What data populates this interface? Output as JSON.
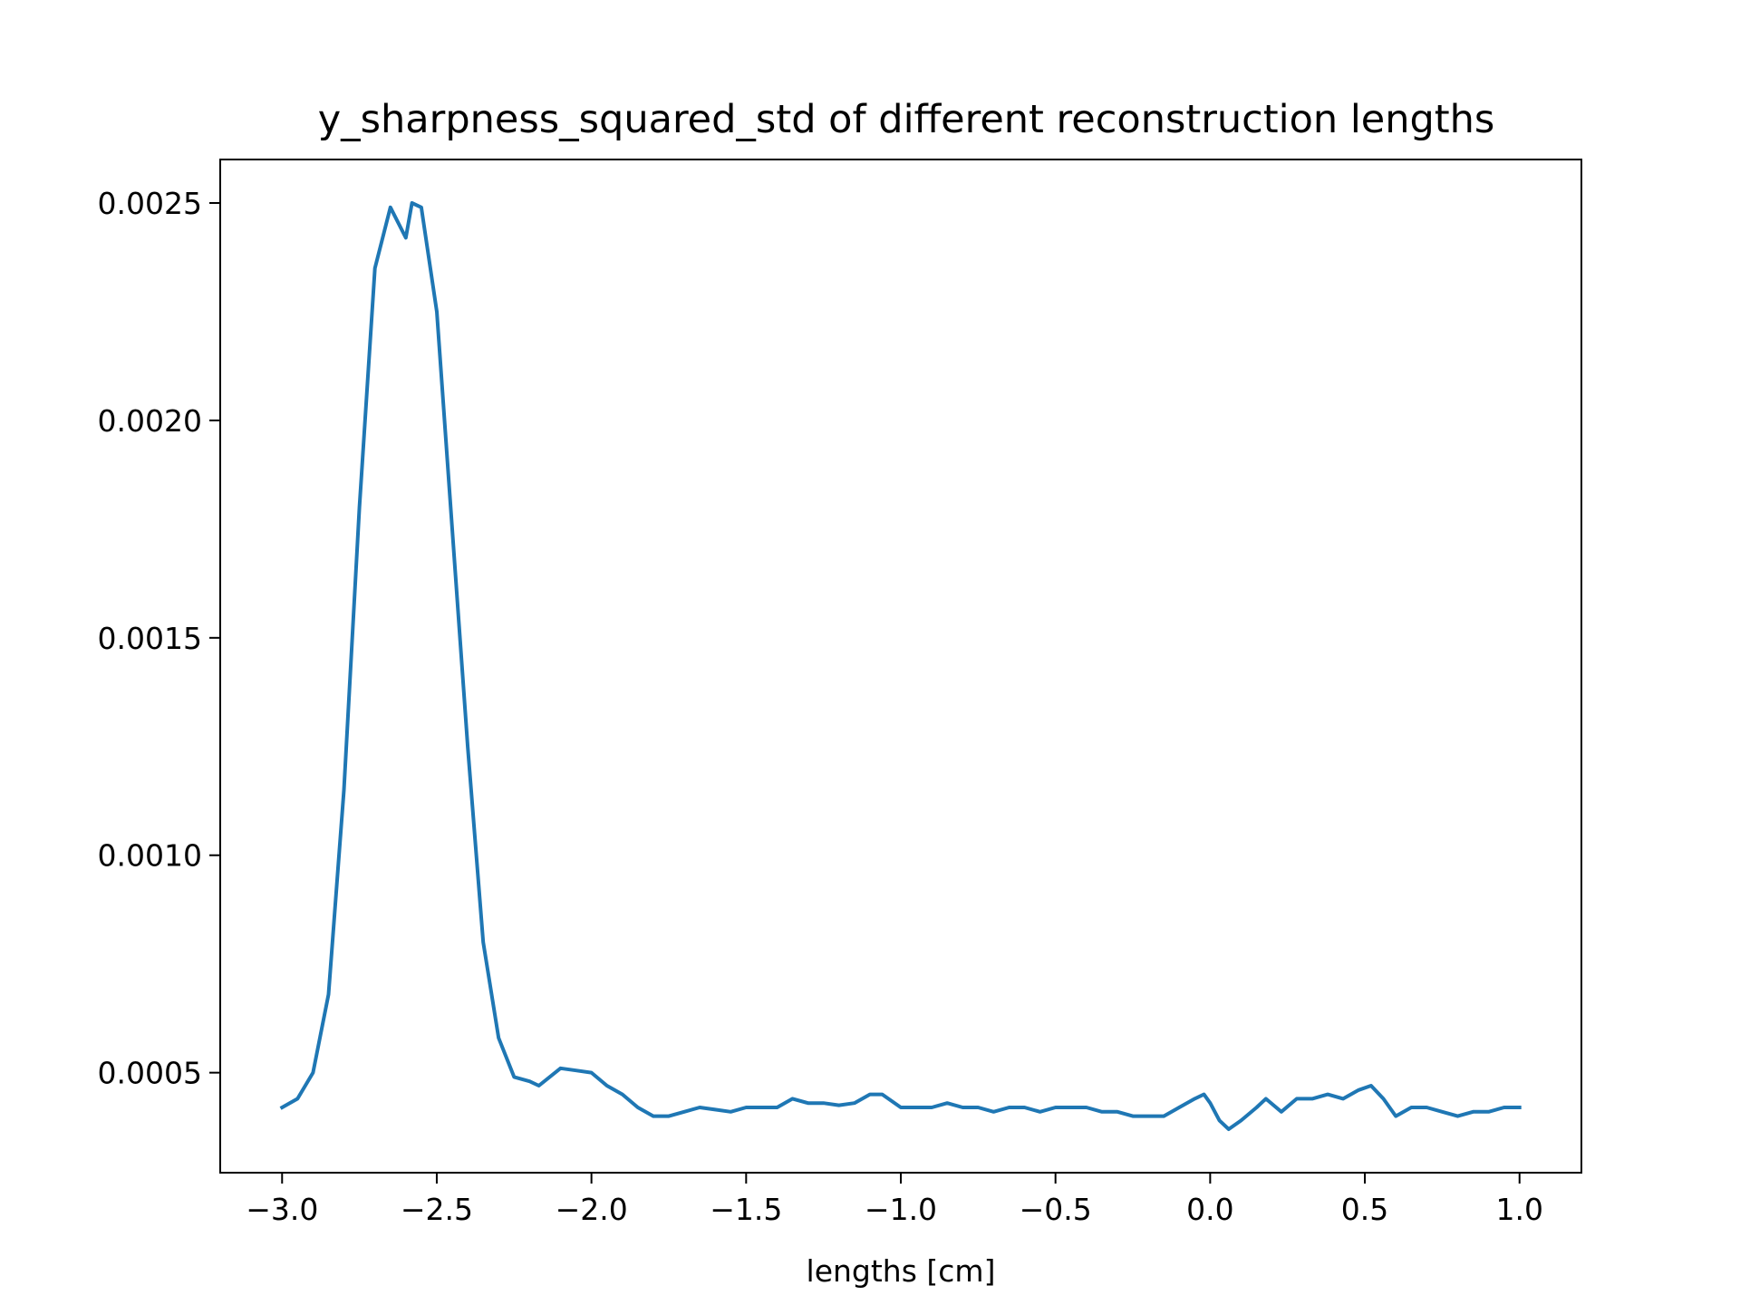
{
  "chart_data": {
    "type": "line",
    "title": "y_sharpness_squared_std of different reconstruction lengths",
    "xlabel": "lengths [cm]",
    "ylabel": "",
    "xlim": [
      -3.2,
      1.2
    ],
    "ylim": [
      0.00027,
      0.0026
    ],
    "x_ticks": [
      -3.0,
      -2.5,
      -2.0,
      -1.5,
      -1.0,
      -0.5,
      0.0,
      0.5,
      1.0
    ],
    "x_tick_labels": [
      "−3.0",
      "−2.5",
      "−2.0",
      "−1.5",
      "−1.0",
      "−0.5",
      "0.0",
      "0.5",
      "1.0"
    ],
    "y_ticks": [
      0.0005,
      0.001,
      0.0015,
      0.002,
      0.0025
    ],
    "y_tick_labels": [
      "0.0005",
      "0.0010",
      "0.0015",
      "0.0020",
      "0.0025"
    ],
    "grid": false,
    "colors": {
      "line": "#1f77b4"
    },
    "series": [
      {
        "x": [
          -3.0,
          -2.95,
          -2.9,
          -2.85,
          -2.8,
          -2.75,
          -2.7,
          -2.65,
          -2.6,
          -2.58,
          -2.55,
          -2.5,
          -2.45,
          -2.4,
          -2.35,
          -2.3,
          -2.25,
          -2.2,
          -2.17,
          -2.1,
          -2.05,
          -2.0,
          -1.95,
          -1.9,
          -1.85,
          -1.8,
          -1.75,
          -1.7,
          -1.65,
          -1.6,
          -1.55,
          -1.5,
          -1.45,
          -1.4,
          -1.35,
          -1.3,
          -1.25,
          -1.2,
          -1.15,
          -1.1,
          -1.06,
          -1.0,
          -0.95,
          -0.9,
          -0.85,
          -0.8,
          -0.75,
          -0.7,
          -0.65,
          -0.6,
          -0.55,
          -0.5,
          -0.45,
          -0.4,
          -0.35,
          -0.3,
          -0.25,
          -0.2,
          -0.15,
          -0.1,
          -0.05,
          -0.02,
          0.0,
          0.03,
          0.06,
          0.1,
          0.15,
          0.18,
          0.23,
          0.28,
          0.33,
          0.38,
          0.43,
          0.48,
          0.52,
          0.56,
          0.6,
          0.65,
          0.7,
          0.75,
          0.8,
          0.85,
          0.9,
          0.95,
          1.0
        ],
        "y": [
          0.00042,
          0.00044,
          0.0005,
          0.00068,
          0.00115,
          0.0018,
          0.00235,
          0.00249,
          0.00242,
          0.0025,
          0.00249,
          0.00225,
          0.00175,
          0.00125,
          0.0008,
          0.00058,
          0.00049,
          0.00048,
          0.00047,
          0.00051,
          0.000505,
          0.0005,
          0.00047,
          0.00045,
          0.00042,
          0.0004,
          0.0004,
          0.00041,
          0.00042,
          0.000415,
          0.00041,
          0.00042,
          0.00042,
          0.00042,
          0.00044,
          0.00043,
          0.00043,
          0.000425,
          0.00043,
          0.00045,
          0.00045,
          0.00042,
          0.00042,
          0.00042,
          0.00043,
          0.00042,
          0.00042,
          0.00041,
          0.00042,
          0.00042,
          0.00041,
          0.00042,
          0.00042,
          0.00042,
          0.00041,
          0.00041,
          0.0004,
          0.0004,
          0.0004,
          0.00042,
          0.00044,
          0.00045,
          0.00043,
          0.00039,
          0.00037,
          0.00039,
          0.00042,
          0.00044,
          0.00041,
          0.00044,
          0.00044,
          0.00045,
          0.00044,
          0.00046,
          0.00047,
          0.00044,
          0.0004,
          0.00042,
          0.00042,
          0.00041,
          0.0004,
          0.00041,
          0.00041,
          0.00042,
          0.00042
        ]
      }
    ]
  }
}
